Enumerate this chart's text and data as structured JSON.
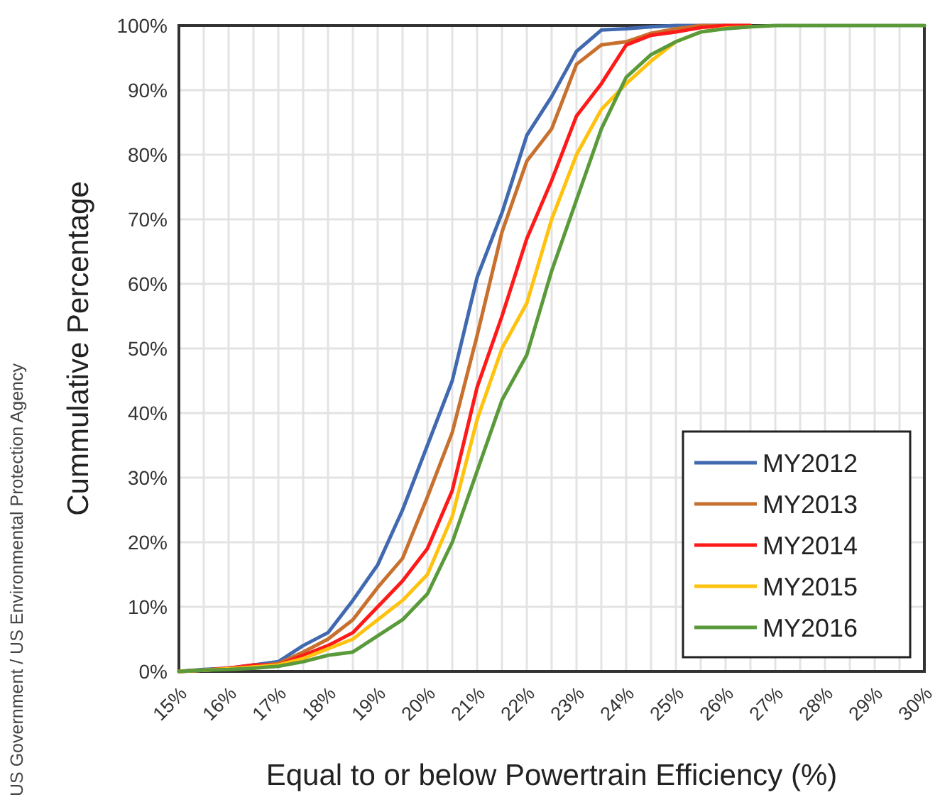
{
  "chart_data": {
    "type": "line",
    "xlabel": "Equal to or below Powertrain Efficiency (%)",
    "ylabel": "Cummulative Percentage",
    "annotations": [
      "US Government / US Environmental Protection Agency"
    ],
    "x": [
      15,
      15.5,
      16,
      16.5,
      17,
      17.5,
      18,
      18.5,
      19,
      19.5,
      20,
      20.5,
      21,
      21.5,
      22,
      22.5,
      23,
      23.5,
      24,
      24.5,
      25,
      25.5,
      26,
      26.5,
      27,
      27.5,
      28,
      28.5,
      29,
      29.5,
      30
    ],
    "xlim": [
      15,
      30
    ],
    "xticks": [
      {
        "value": 15,
        "label": "15%"
      },
      {
        "value": 15.5,
        "label": null
      },
      {
        "value": 16,
        "label": "16%"
      },
      {
        "value": 16.5,
        "label": null
      },
      {
        "value": 17,
        "label": "17%"
      },
      {
        "value": 17.5,
        "label": null
      },
      {
        "value": 18,
        "label": "18%"
      },
      {
        "value": 18.5,
        "label": null
      },
      {
        "value": 19,
        "label": "19%"
      },
      {
        "value": 19.5,
        "label": null
      },
      {
        "value": 20,
        "label": "20%"
      },
      {
        "value": 20.5,
        "label": null
      },
      {
        "value": 21,
        "label": "21%"
      },
      {
        "value": 21.5,
        "label": null
      },
      {
        "value": 22,
        "label": "22%"
      },
      {
        "value": 22.5,
        "label": null
      },
      {
        "value": 23,
        "label": "23%"
      },
      {
        "value": 23.5,
        "label": null
      },
      {
        "value": 24,
        "label": "24%"
      },
      {
        "value": 24.5,
        "label": null
      },
      {
        "value": 25,
        "label": "25%"
      },
      {
        "value": 25.5,
        "label": null
      },
      {
        "value": 26,
        "label": "26%"
      },
      {
        "value": 26.5,
        "label": null
      },
      {
        "value": 27,
        "label": "27%"
      },
      {
        "value": 27.5,
        "label": null
      },
      {
        "value": 28,
        "label": "28%"
      },
      {
        "value": 28.5,
        "label": null
      },
      {
        "value": 29,
        "label": "29%"
      },
      {
        "value": 29.5,
        "label": null
      },
      {
        "value": 30,
        "label": "30%"
      }
    ],
    "ylim": [
      0,
      100
    ],
    "yticks": [
      {
        "value": 0,
        "label": "0%"
      },
      {
        "value": 10,
        "label": "10%"
      },
      {
        "value": 20,
        "label": "20%"
      },
      {
        "value": 30,
        "label": "30%"
      },
      {
        "value": 40,
        "label": "40%"
      },
      {
        "value": 50,
        "label": "50%"
      },
      {
        "value": 60,
        "label": "60%"
      },
      {
        "value": 70,
        "label": "70%"
      },
      {
        "value": 80,
        "label": "80%"
      },
      {
        "value": 90,
        "label": "90%"
      },
      {
        "value": 100,
        "label": "100%"
      }
    ],
    "grid": true,
    "legend": "bottom right",
    "marker": "none",
    "line_style": "solid",
    "series": [
      {
        "name": "MY2012",
        "color": "#4169b0",
        "values": [
          0,
          0.3,
          0.5,
          1,
          1.5,
          4,
          6,
          11,
          16.5,
          25,
          35,
          45,
          61,
          71,
          83,
          89,
          96,
          99.3,
          99.5,
          99.8,
          100,
          100,
          100,
          null,
          null,
          null,
          null,
          null,
          null,
          null,
          null
        ]
      },
      {
        "name": "MY2013",
        "color": "#c8702e",
        "values": [
          0,
          0.2,
          0.5,
          0.8,
          1.2,
          3,
          5,
          8,
          13,
          17.5,
          27,
          37,
          52,
          68,
          79,
          84,
          94,
          97,
          97.5,
          98.8,
          99.5,
          100,
          100,
          100,
          null,
          null,
          null,
          null,
          null,
          null,
          null
        ]
      },
      {
        "name": "MY2014",
        "color": "#ff1a1a",
        "values": [
          0,
          0.2,
          0.5,
          1,
          1,
          2.5,
          4,
          6,
          10,
          14,
          19,
          28,
          44,
          55,
          67,
          76,
          86,
          91,
          97,
          98.5,
          99,
          99.7,
          100,
          100,
          null,
          null,
          null,
          null,
          null,
          null,
          null
        ]
      },
      {
        "name": "MY2015",
        "color": "#ffc20e",
        "values": [
          0,
          0.2,
          0.4,
          0.7,
          1,
          2,
          3.5,
          5,
          8,
          11,
          15,
          24,
          39,
          50,
          57,
          70,
          80,
          87,
          91,
          94.5,
          97.5,
          99,
          99.6,
          99.8,
          null,
          null,
          null,
          null,
          null,
          null,
          null
        ]
      },
      {
        "name": "MY2016",
        "color": "#5a9a3a",
        "values": [
          0,
          0.2,
          0.3,
          0.5,
          0.8,
          1.5,
          2.5,
          3,
          5.5,
          8,
          12,
          20,
          31,
          42,
          49,
          62,
          73,
          84,
          92,
          95.5,
          97.5,
          99,
          99.5,
          99.8,
          100,
          100,
          100,
          100,
          100,
          100,
          100
        ]
      }
    ]
  }
}
